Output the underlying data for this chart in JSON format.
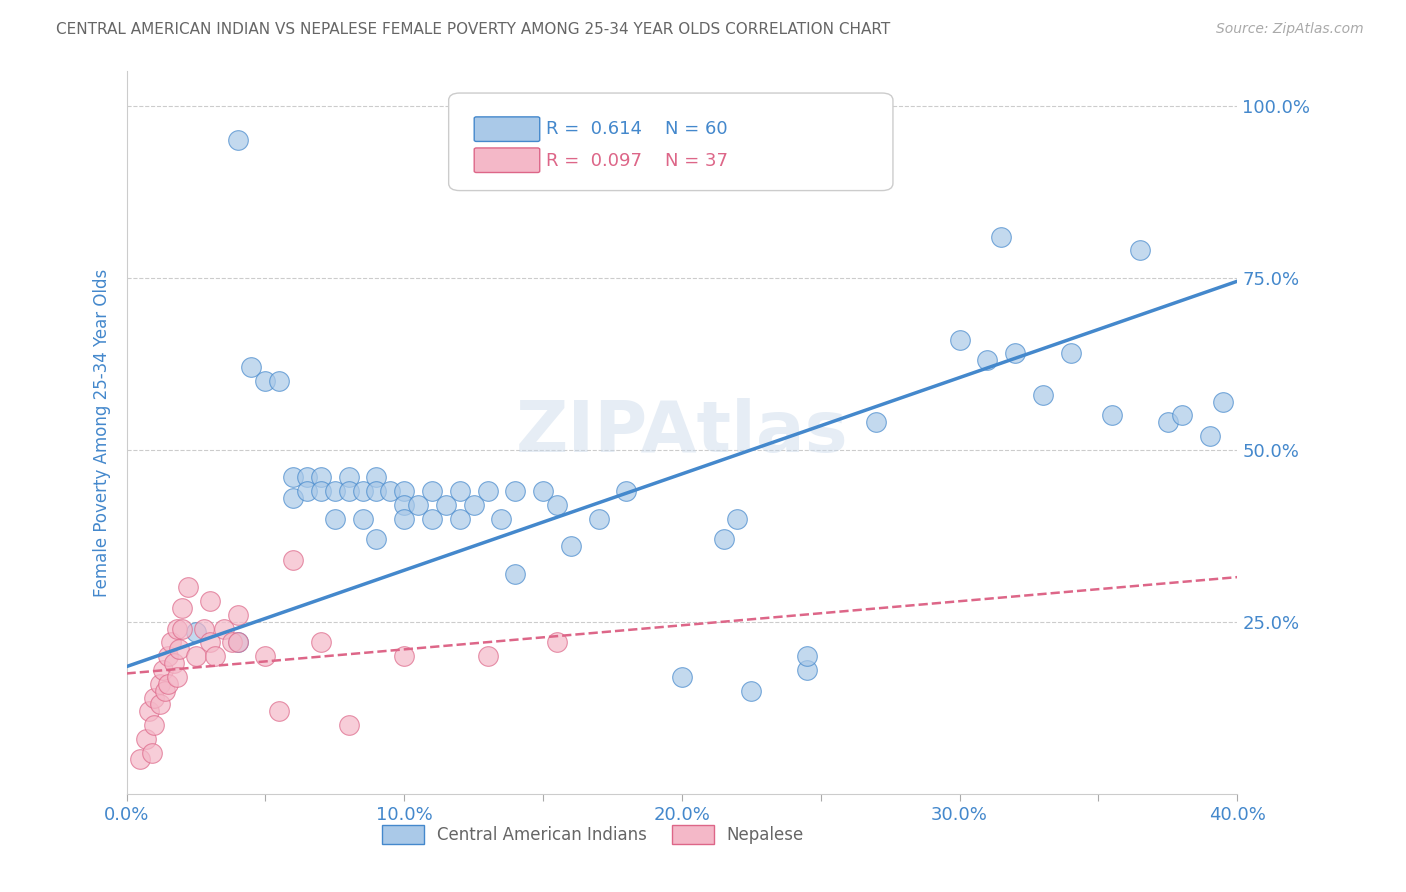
{
  "title": "CENTRAL AMERICAN INDIAN VS NEPALESE FEMALE POVERTY AMONG 25-34 YEAR OLDS CORRELATION CHART",
  "source": "Source: ZipAtlas.com",
  "ylabel_label": "Female Poverty Among 25-34 Year Olds",
  "xlim": [
    0.0,
    0.4
  ],
  "ylim": [
    0.0,
    1.05
  ],
  "xtick_labels": [
    "0.0%",
    "",
    "10.0%",
    "",
    "20.0%",
    "",
    "30.0%",
    "",
    "40.0%"
  ],
  "xtick_vals": [
    0.0,
    0.05,
    0.1,
    0.15,
    0.2,
    0.25,
    0.3,
    0.35,
    0.4
  ],
  "ytick_labels": [
    "100.0%",
    "75.0%",
    "50.0%",
    "25.0%"
  ],
  "ytick_vals": [
    1.0,
    0.75,
    0.5,
    0.25
  ],
  "background_color": "#ffffff",
  "grid_color": "#cccccc",
  "watermark": "ZIPAtlas",
  "legend_r1": " 0.614",
  "legend_n1": " 60",
  "legend_r2": " 0.097",
  "legend_n2": " 37",
  "color_blue": "#aac9e8",
  "color_pink": "#f4b8c8",
  "color_line_blue": "#4488cc",
  "color_line_pink": "#dd6688",
  "title_color": "#666666",
  "axis_label_color": "#4488cc",
  "source_color": "#aaaaaa",
  "blue_x": [
    0.025,
    0.04,
    0.045,
    0.05,
    0.055,
    0.06,
    0.06,
    0.065,
    0.065,
    0.07,
    0.07,
    0.075,
    0.075,
    0.08,
    0.08,
    0.085,
    0.085,
    0.09,
    0.09,
    0.09,
    0.095,
    0.1,
    0.1,
    0.1,
    0.105,
    0.11,
    0.11,
    0.115,
    0.12,
    0.12,
    0.125,
    0.13,
    0.135,
    0.14,
    0.14,
    0.15,
    0.155,
    0.16,
    0.17,
    0.18,
    0.2,
    0.22,
    0.225,
    0.245,
    0.27,
    0.3,
    0.31,
    0.315,
    0.32,
    0.33,
    0.34,
    0.355,
    0.365,
    0.375,
    0.38,
    0.39,
    0.395,
    0.215,
    0.245,
    0.04
  ],
  "blue_y": [
    0.235,
    0.95,
    0.62,
    0.6,
    0.6,
    0.46,
    0.43,
    0.46,
    0.44,
    0.46,
    0.44,
    0.44,
    0.4,
    0.46,
    0.44,
    0.44,
    0.4,
    0.46,
    0.44,
    0.37,
    0.44,
    0.44,
    0.42,
    0.4,
    0.42,
    0.44,
    0.4,
    0.42,
    0.44,
    0.4,
    0.42,
    0.44,
    0.4,
    0.44,
    0.32,
    0.44,
    0.42,
    0.36,
    0.4,
    0.44,
    0.17,
    0.4,
    0.15,
    0.18,
    0.54,
    0.66,
    0.63,
    0.81,
    0.64,
    0.58,
    0.64,
    0.55,
    0.79,
    0.54,
    0.55,
    0.52,
    0.57,
    0.37,
    0.2,
    0.22
  ],
  "pink_x": [
    0.005,
    0.007,
    0.008,
    0.009,
    0.01,
    0.01,
    0.012,
    0.012,
    0.013,
    0.014,
    0.015,
    0.015,
    0.016,
    0.017,
    0.018,
    0.018,
    0.019,
    0.02,
    0.02,
    0.022,
    0.025,
    0.028,
    0.03,
    0.03,
    0.032,
    0.035,
    0.038,
    0.04,
    0.04,
    0.05,
    0.055,
    0.06,
    0.07,
    0.08,
    0.1,
    0.13,
    0.155
  ],
  "pink_y": [
    0.05,
    0.08,
    0.12,
    0.06,
    0.14,
    0.1,
    0.16,
    0.13,
    0.18,
    0.15,
    0.2,
    0.16,
    0.22,
    0.19,
    0.24,
    0.17,
    0.21,
    0.24,
    0.27,
    0.3,
    0.2,
    0.24,
    0.28,
    0.22,
    0.2,
    0.24,
    0.22,
    0.26,
    0.22,
    0.2,
    0.12,
    0.34,
    0.22,
    0.1,
    0.2,
    0.2,
    0.22
  ]
}
